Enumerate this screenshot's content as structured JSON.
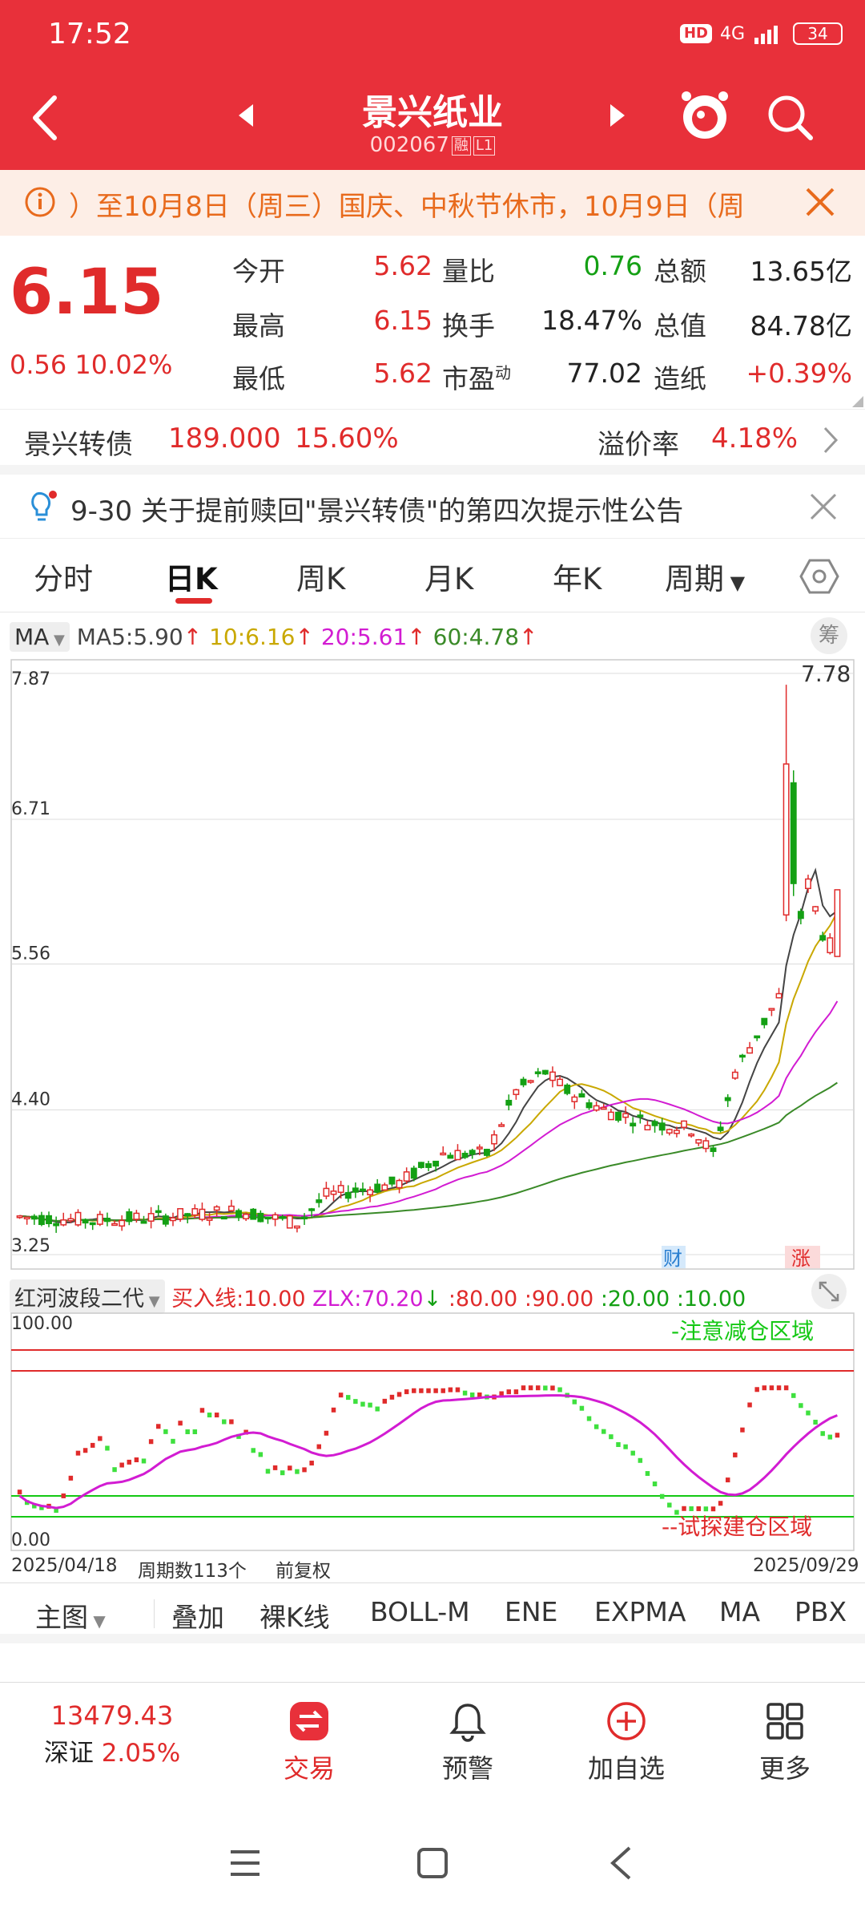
{
  "status": {
    "time": "17:52",
    "hd": "HD",
    "network": "4G",
    "battery": "34"
  },
  "stock": {
    "name": "景兴纸业",
    "code": "002067",
    "tag1": "融",
    "tag2": "L1"
  },
  "notice": {
    "text": "）至10月8日（周三）国庆、中秋节休市，10月9日（周"
  },
  "quote": {
    "price": "6.15",
    "change": "0.56",
    "change_pct": "10.02%",
    "open_label": "今开",
    "open": "5.62",
    "high_label": "最高",
    "high": "6.15",
    "low_label": "最低",
    "low": "5.62",
    "vol_ratio_label": "量比",
    "vol_ratio": "0.76",
    "turnover_label": "换手",
    "turnover": "18.47%",
    "pe_label": "市盈",
    "pe_sup": "动",
    "pe": "77.02",
    "amount_label": "总额",
    "amount": "13.65亿",
    "mktcap_label": "总值",
    "mktcap": "84.78亿",
    "sector_label": "造纸",
    "sector": "+0.39%"
  },
  "bond": {
    "name": "景兴转债",
    "price": "189.000",
    "pct": "15.60%",
    "premium_label": "溢价率",
    "premium": "4.18%"
  },
  "announcement": {
    "text": "9-30 关于提前赎回\"景兴转债\"的第四次提示性公告"
  },
  "tabs": [
    "分时",
    "日K",
    "周K",
    "月K",
    "年K",
    "周期"
  ],
  "ma_legend": {
    "select": "MA",
    "ma5": "MA5:5.90",
    "ma10": "10:6.16",
    "ma20": "20:5.61",
    "ma60": "60:4.78",
    "chip": "筹"
  },
  "colors": {
    "up": "#e02b2b",
    "down": "#14a014",
    "ma5": "#444444",
    "ma10": "#c9a800",
    "ma20": "#d21cd2",
    "ma60": "#3a8a28",
    "header": "#e8303a"
  },
  "chart_data": [
    {
      "type": "candlestick",
      "y_ticks": [
        "7.87",
        "6.71",
        "5.56",
        "4.40",
        "3.25"
      ],
      "ylim": [
        3.25,
        7.87
      ],
      "high_label": "7.78",
      "markers": [
        "财",
        "涨"
      ],
      "x_start": "2025/04/18",
      "x_end": "2025/09/29",
      "period_count": "周期数113个",
      "adjust": "前复权"
    },
    {
      "type": "line",
      "name": "红河波段二代",
      "buy_line": "买入线:10.00",
      "zlx": "ZLX:70.20",
      "levels": [
        ":80.00",
        ":90.00",
        ":20.00",
        ":10.00"
      ],
      "y_ticks": [
        "100.00",
        "0.00"
      ],
      "ylim": [
        0,
        100
      ],
      "top_zone": "注意减仓区域",
      "bottom_zone": "试探建仓区域"
    }
  ],
  "chart_tools": [
    "主图",
    "叠加",
    "裸K线",
    "BOLL-M",
    "ENE",
    "EXPMA",
    "MA",
    "PBX"
  ],
  "bottom_nav": {
    "index_value": "13479.43",
    "index_name": "深证",
    "index_pct": "2.05%",
    "trade": "交易",
    "alert": "预警",
    "add": "加自选",
    "more": "更多"
  }
}
